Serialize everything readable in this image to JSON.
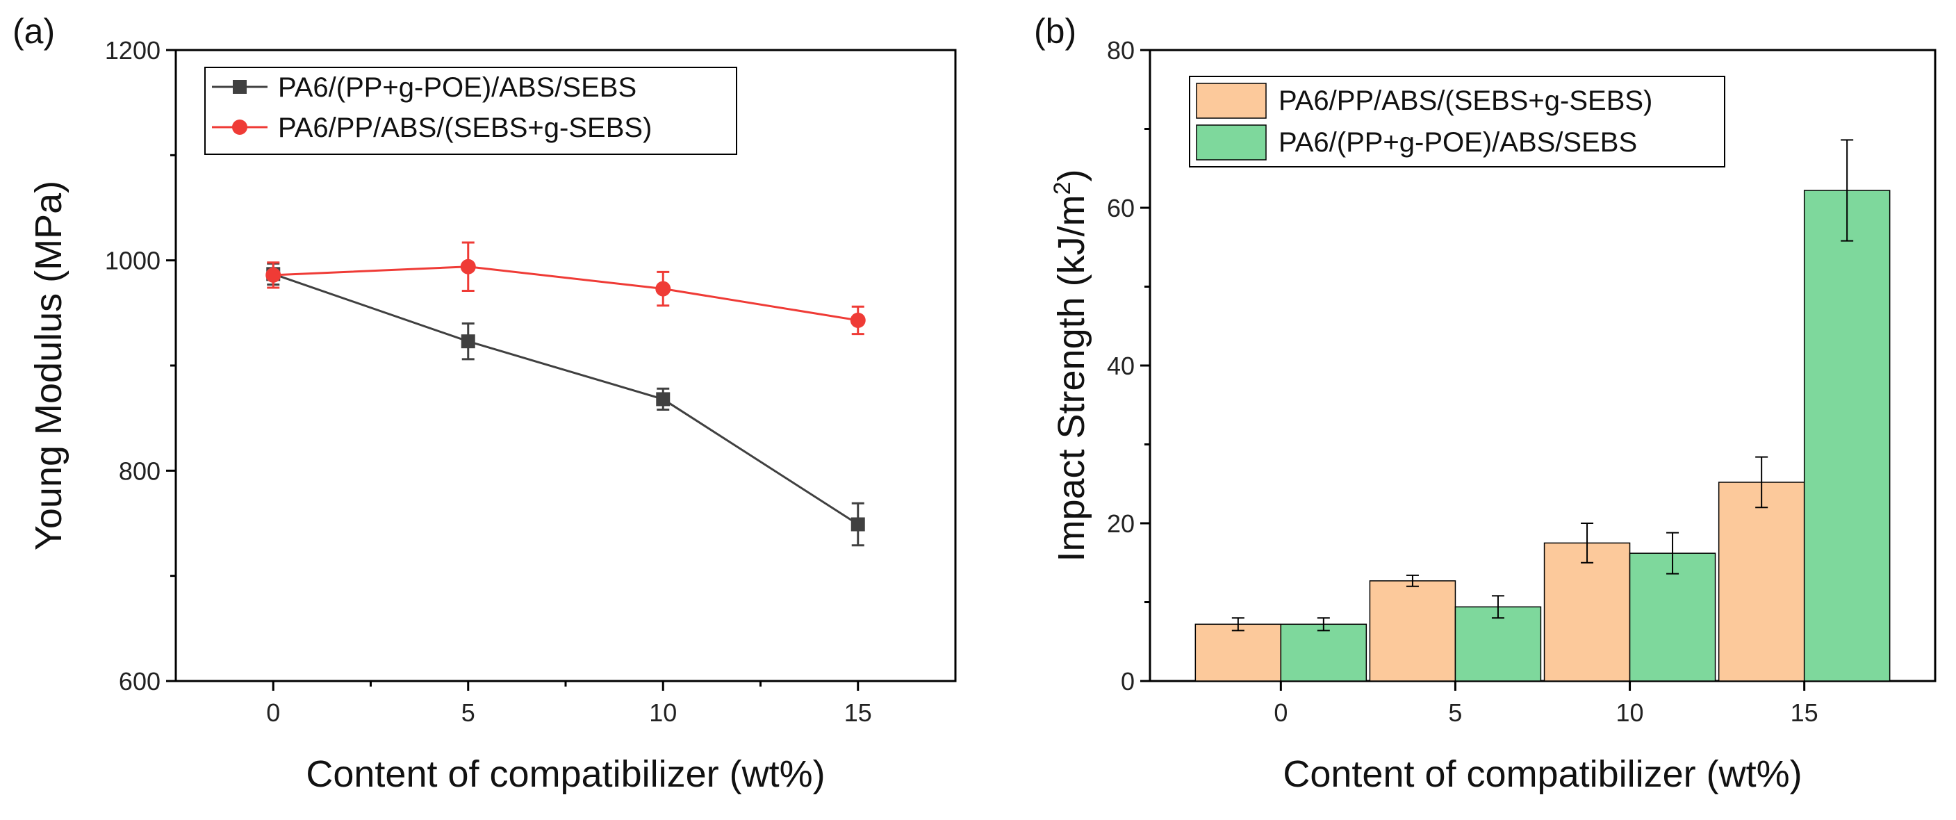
{
  "chart_data": [
    {
      "type": "line",
      "panel_label": "(a)",
      "xlabel": "Content of compatibilizer (wt%)",
      "ylabel": "Young Modulus (MPa)",
      "x": [
        0,
        5,
        10,
        15
      ],
      "xlim": [
        -2.5,
        17.5
      ],
      "ylim": [
        600,
        1200
      ],
      "xticks": [
        0,
        5,
        10,
        15
      ],
      "yticks": [
        600,
        800,
        1000,
        1200
      ],
      "legend_position": "top-left",
      "series": [
        {
          "name": "PA6/(PP+g-POE)/ABS/SEBS",
          "color": "#404040",
          "marker": "square",
          "values": [
            987,
            923,
            868,
            749
          ],
          "errors": [
            10,
            17,
            10,
            20
          ]
        },
        {
          "name": "PA6/PP/ABS/(SEBS+g-SEBS)",
          "color": "#ef3b36",
          "marker": "circle",
          "values": [
            986,
            994,
            973,
            943
          ],
          "errors": [
            12,
            23,
            16,
            13
          ]
        }
      ]
    },
    {
      "type": "bar",
      "panel_label": "(b)",
      "xlabel": "Content of compatibilizer (wt%)",
      "ylabel_main": "Impact Strength (kJ/m",
      "ylabel_sup": "2",
      "ylabel_tail": ")",
      "categories": [
        "0",
        "5",
        "10",
        "15"
      ],
      "ylim": [
        0,
        80
      ],
      "yticks": [
        0,
        20,
        40,
        60,
        80
      ],
      "legend_position": "top-left",
      "series": [
        {
          "name": "PA6/PP/ABS/(SEBS+g-SEBS)",
          "color": "#fcc99b",
          "values": [
            7.2,
            12.7,
            17.5,
            25.2
          ],
          "errors": [
            0.8,
            0.7,
            2.5,
            3.2
          ]
        },
        {
          "name": "PA6/(PP+g-POE)/ABS/SEBS",
          "color": "#7ed89c",
          "values": [
            7.2,
            9.4,
            16.2,
            62.2
          ],
          "errors": [
            0.8,
            1.4,
            2.6,
            6.4
          ]
        }
      ]
    }
  ]
}
